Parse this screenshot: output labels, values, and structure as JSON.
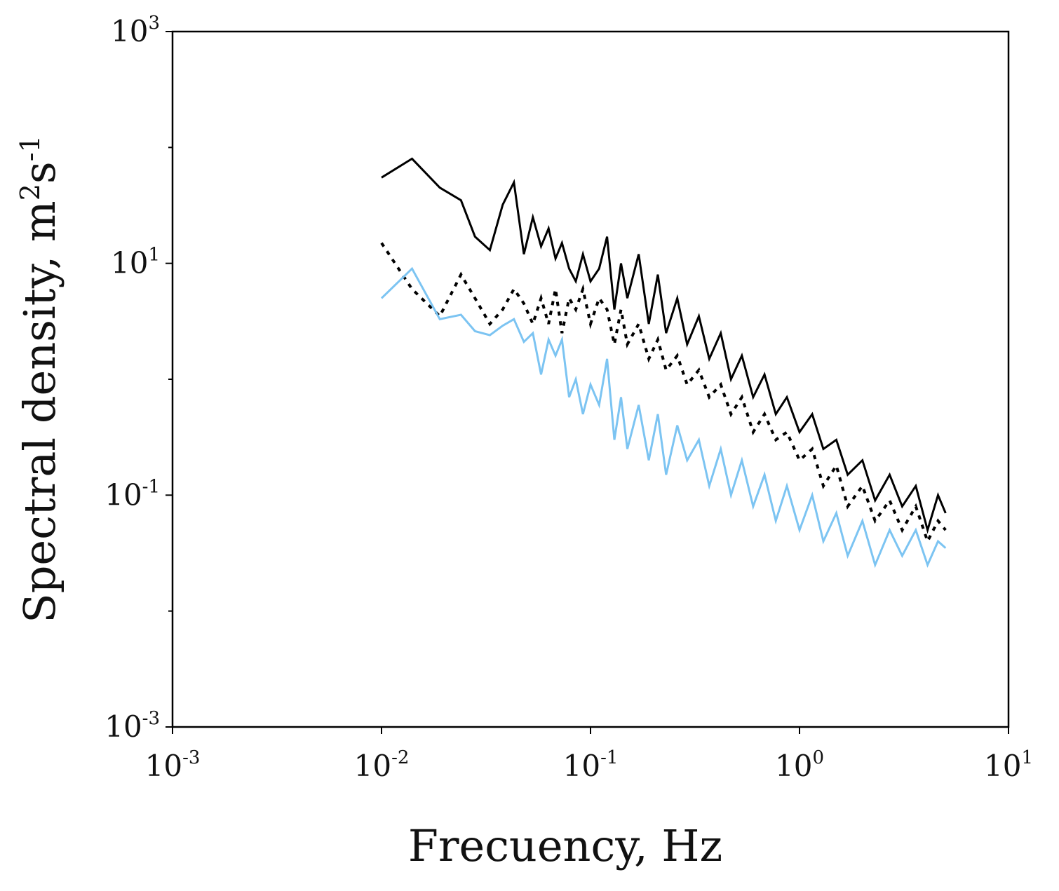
{
  "chart_data": {
    "type": "line",
    "title": "",
    "xlabel": "Frecuency, Hz",
    "ylabel": "Spectral density, m2s-1",
    "ylabel_parts": {
      "base": "Spectral density, m",
      "sup1": "2",
      "mid": "s",
      "sup2": "-1"
    },
    "xscale": "log",
    "yscale": "log",
    "xlim": [
      0.001,
      10
    ],
    "ylim": [
      0.001,
      1000
    ],
    "grid": false,
    "x_ticks": [
      {
        "value": 0.001,
        "base": "10",
        "exp": "-3"
      },
      {
        "value": 0.01,
        "base": "10",
        "exp": "-2"
      },
      {
        "value": 0.1,
        "base": "10",
        "exp": "-1"
      },
      {
        "value": 1,
        "base": "10",
        "exp": "0"
      },
      {
        "value": 10,
        "base": "10",
        "exp": "1"
      }
    ],
    "y_ticks": [
      {
        "value": 0.001,
        "base": "10",
        "exp": "-3"
      },
      {
        "value": 0.1,
        "base": "10",
        "exp": "-1"
      },
      {
        "value": 10,
        "base": "10",
        "exp": "1"
      },
      {
        "value": 1000,
        "base": "10",
        "exp": "3"
      }
    ],
    "series": [
      {
        "name": "series-solid-black",
        "style": "solid",
        "color": "#000000",
        "x": [
          0.01,
          0.014,
          0.019,
          0.024,
          0.028,
          0.033,
          0.038,
          0.043,
          0.048,
          0.053,
          0.058,
          0.063,
          0.068,
          0.073,
          0.079,
          0.085,
          0.092,
          0.1,
          0.11,
          0.12,
          0.13,
          0.14,
          0.15,
          0.17,
          0.19,
          0.21,
          0.23,
          0.26,
          0.29,
          0.33,
          0.37,
          0.42,
          0.47,
          0.53,
          0.6,
          0.68,
          0.77,
          0.87,
          1.0,
          1.15,
          1.3,
          1.5,
          1.7,
          2.0,
          2.3,
          2.7,
          3.1,
          3.6,
          4.1,
          4.6,
          5.0
        ],
        "y": [
          55,
          80,
          45,
          35,
          17,
          13,
          32,
          50,
          12,
          25,
          14,
          20,
          11,
          15,
          9,
          7,
          12,
          7,
          9,
          17,
          4,
          10,
          5,
          12,
          3,
          8,
          2.5,
          5,
          2,
          3.5,
          1.5,
          2.5,
          1.0,
          1.6,
          0.7,
          1.1,
          0.5,
          0.7,
          0.35,
          0.5,
          0.25,
          0.3,
          0.15,
          0.2,
          0.09,
          0.15,
          0.08,
          0.12,
          0.05,
          0.1,
          0.07
        ]
      },
      {
        "name": "series-dotted-black",
        "style": "dotted",
        "color": "#000000",
        "x": [
          0.01,
          0.014,
          0.019,
          0.024,
          0.028,
          0.033,
          0.038,
          0.043,
          0.048,
          0.053,
          0.058,
          0.063,
          0.068,
          0.073,
          0.079,
          0.085,
          0.092,
          0.1,
          0.11,
          0.12,
          0.13,
          0.14,
          0.15,
          0.17,
          0.19,
          0.21,
          0.23,
          0.26,
          0.29,
          0.33,
          0.37,
          0.42,
          0.47,
          0.53,
          0.6,
          0.68,
          0.77,
          0.87,
          1.0,
          1.15,
          1.3,
          1.5,
          1.7,
          2.0,
          2.3,
          2.7,
          3.1,
          3.6,
          4.1,
          4.6,
          5.0
        ],
        "y": [
          15,
          6,
          3.5,
          8,
          5,
          3,
          4,
          6,
          4.5,
          3,
          5,
          3,
          6,
          2.5,
          5,
          4,
          6,
          3,
          5,
          4,
          2,
          4,
          2,
          3,
          1.5,
          2.2,
          1.2,
          1.6,
          0.9,
          1.2,
          0.7,
          0.9,
          0.5,
          0.7,
          0.35,
          0.5,
          0.3,
          0.35,
          0.2,
          0.25,
          0.12,
          0.18,
          0.08,
          0.12,
          0.06,
          0.09,
          0.05,
          0.08,
          0.04,
          0.06,
          0.05
        ]
      },
      {
        "name": "series-light-blue",
        "style": "solid",
        "color": "#7cc4f2",
        "x": [
          0.01,
          0.014,
          0.019,
          0.024,
          0.028,
          0.033,
          0.038,
          0.043,
          0.048,
          0.053,
          0.058,
          0.063,
          0.068,
          0.073,
          0.079,
          0.085,
          0.092,
          0.1,
          0.11,
          0.12,
          0.13,
          0.14,
          0.15,
          0.17,
          0.19,
          0.21,
          0.23,
          0.26,
          0.29,
          0.33,
          0.37,
          0.42,
          0.47,
          0.53,
          0.6,
          0.68,
          0.77,
          0.87,
          1.0,
          1.15,
          1.3,
          1.5,
          1.7,
          2.0,
          2.3,
          2.7,
          3.1,
          3.6,
          4.1,
          4.6,
          5.0
        ],
        "y": [
          5,
          9,
          3.3,
          3.6,
          2.6,
          2.4,
          2.9,
          3.3,
          2.1,
          2.5,
          1.1,
          2.2,
          1.6,
          2.2,
          0.7,
          1.0,
          0.5,
          0.9,
          0.6,
          1.5,
          0.3,
          0.7,
          0.25,
          0.6,
          0.2,
          0.5,
          0.15,
          0.4,
          0.2,
          0.3,
          0.12,
          0.25,
          0.1,
          0.2,
          0.08,
          0.15,
          0.06,
          0.12,
          0.05,
          0.1,
          0.04,
          0.07,
          0.03,
          0.06,
          0.025,
          0.05,
          0.03,
          0.05,
          0.025,
          0.04,
          0.035
        ]
      }
    ]
  }
}
